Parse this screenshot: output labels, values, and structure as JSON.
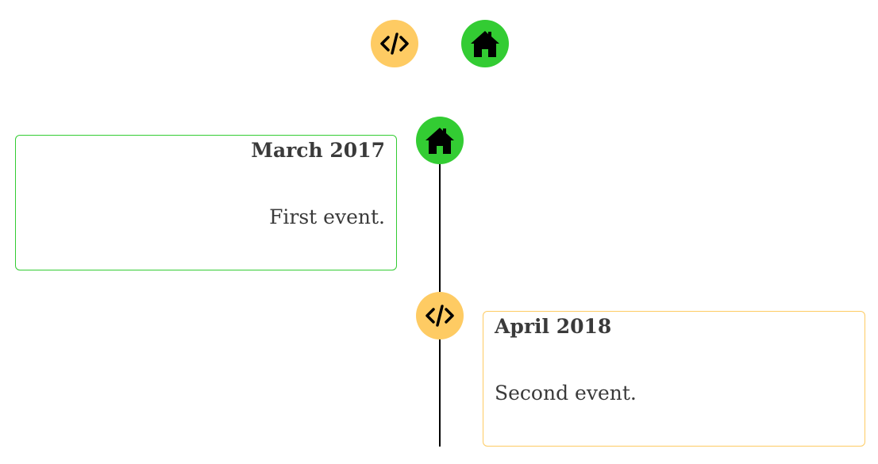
{
  "filter_icons": [
    {
      "icon": "code-icon",
      "color": "#fecb63"
    },
    {
      "icon": "home-icon",
      "color": "#33cc33"
    }
  ],
  "events": [
    {
      "date": "March 2017",
      "description": "First event.",
      "icon": "home-icon",
      "color": "#33cc33",
      "side": "left"
    },
    {
      "date": "April 2018",
      "description": "Second event.",
      "icon": "code-icon",
      "color": "#fecb63",
      "side": "right"
    }
  ]
}
